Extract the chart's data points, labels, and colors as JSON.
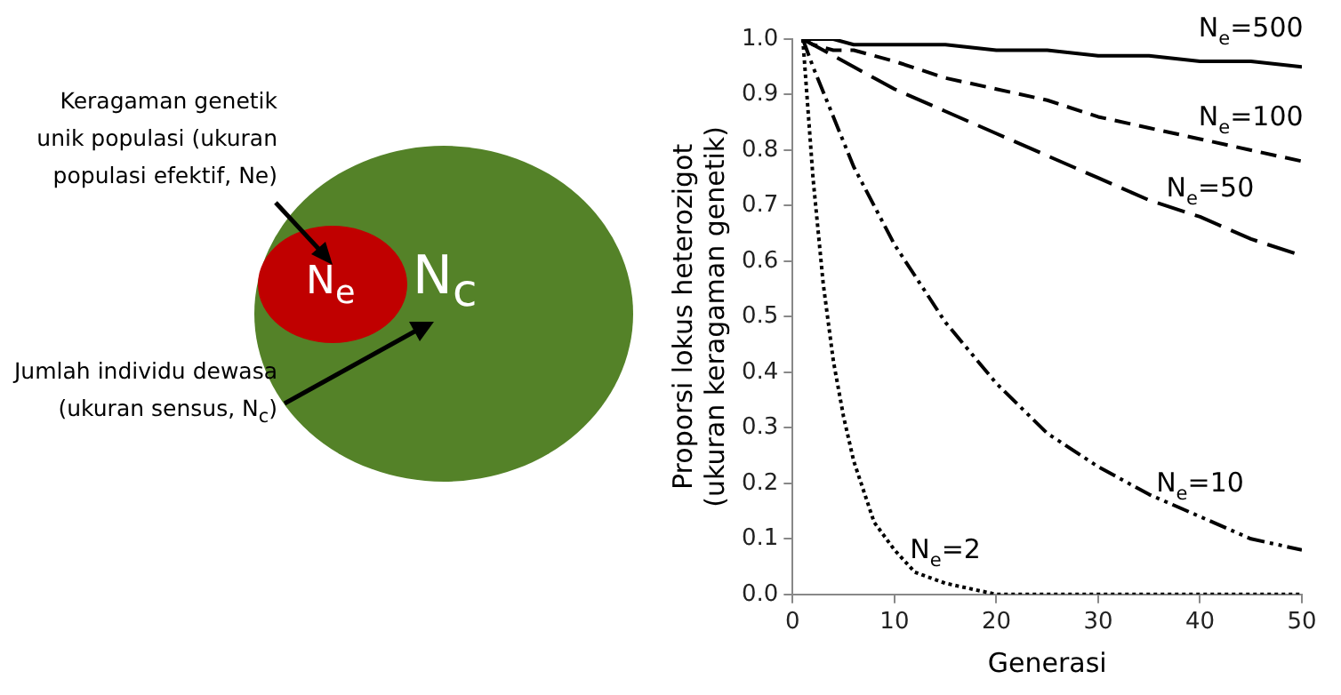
{
  "chart_data": [
    {
      "type": "other",
      "annotations": [
        "Keragaman genetik unik populasi (ukuran populasi efektif, Ne)",
        "N$_{e}$",
        "N$_{c}$",
        "Jumlah individu dewasa (ukuran sensus, N$_{c}$)"
      ]
    },
    {
      "type": "line",
      "xlabel": "Generasi",
      "ylabel": "Proporsi lokus heterozigot\n(ukuran keragaman genetik)",
      "x": [
        1,
        2,
        4,
        6,
        8,
        10,
        15,
        20,
        25,
        30,
        35,
        40,
        45,
        50
      ],
      "series": [
        {
          "name": "N$_{e}$=500",
          "color": "#000000",
          "line_style": "solid",
          "values": [
            1,
            1,
            1,
            0.99,
            0.99,
            0.99,
            0.99,
            0.98,
            0.98,
            0.97,
            0.97,
            0.96,
            0.96,
            0.95
          ]
        },
        {
          "name": "N$_{e}$=100",
          "color": "#000000",
          "line_style": "dashed",
          "values": [
            1,
            0.99,
            0.98,
            0.98,
            0.97,
            0.96,
            0.93,
            0.91,
            0.89,
            0.86,
            0.84,
            0.82,
            0.8,
            0.78
          ]
        },
        {
          "name": "N$_{e}$=50",
          "color": "#000000",
          "line_style": "longdash",
          "values": [
            1,
            0.99,
            0.97,
            0.95,
            0.93,
            0.91,
            0.87,
            0.83,
            0.79,
            0.75,
            0.71,
            0.68,
            0.64,
            0.61
          ]
        },
        {
          "name": "N$_{e}$=10",
          "color": "#000000",
          "line_style": "dashdotdot",
          "values": [
            1,
            0.95,
            0.86,
            0.77,
            0.7,
            0.63,
            0.49,
            0.38,
            0.29,
            0.23,
            0.18,
            0.14,
            0.1,
            0.08
          ]
        },
        {
          "name": "N$_{e}$=2",
          "color": "#000000",
          "line_style": "dotted",
          "x": [
            1,
            2,
            3,
            4,
            5,
            6,
            8,
            10,
            12,
            15,
            20,
            25,
            30,
            40,
            50
          ],
          "values": [
            1,
            0.75,
            0.56,
            0.42,
            0.32,
            0.24,
            0.13,
            0.08,
            0.04,
            0.02,
            0,
            0,
            0,
            0,
            0
          ]
        }
      ],
      "xlim": [
        0,
        50
      ],
      "xticks": [
        0,
        10,
        20,
        30,
        40,
        50
      ],
      "ylim": [
        0,
        1
      ],
      "yticks": [
        {
          "value": 0,
          "label": "0.0"
        },
        {
          "value": 0.1,
          "label": "0.1"
        },
        {
          "value": 0.2,
          "label": "0.2"
        },
        {
          "value": 0.3,
          "label": "0.3"
        },
        {
          "value": 0.4,
          "label": "0.4"
        },
        {
          "value": 0.5,
          "label": "0.5"
        },
        {
          "value": 0.6,
          "label": "0.6"
        },
        {
          "value": 0.7,
          "label": "0.7"
        },
        {
          "value": 0.8,
          "label": "0.8"
        },
        {
          "value": 0.9,
          "label": "0.9"
        },
        {
          "value": 1,
          "label": "1.0"
        }
      ],
      "grid": false,
      "legend": false,
      "marker": "none"
    }
  ]
}
